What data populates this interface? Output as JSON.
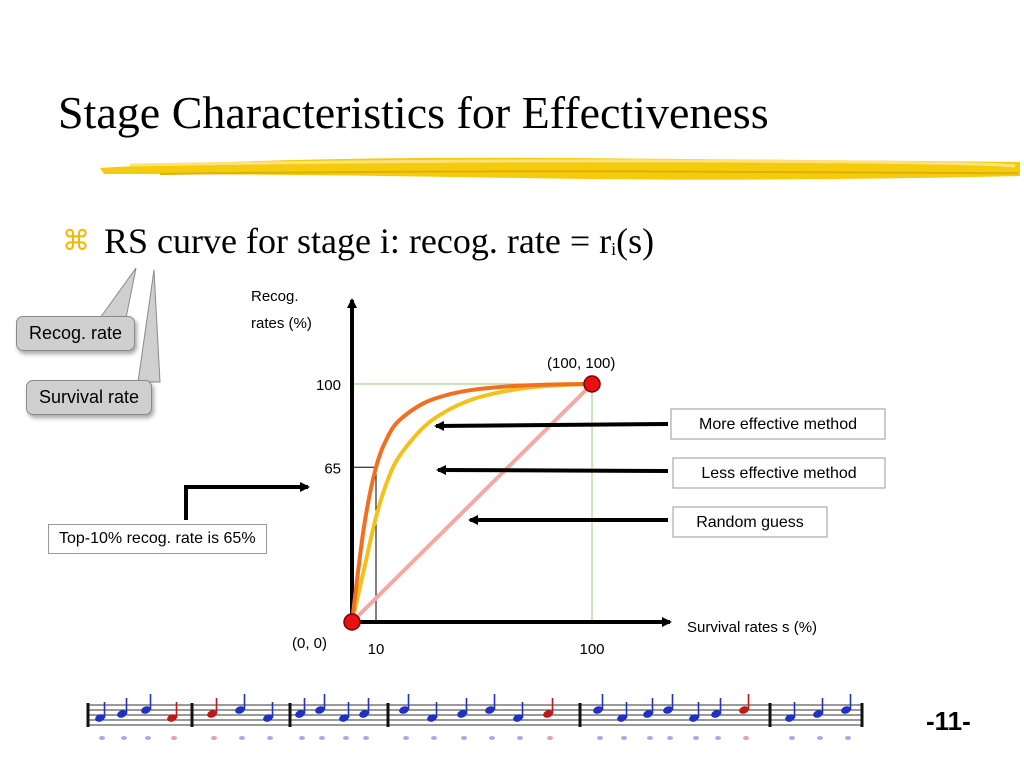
{
  "slide": {
    "title": "Stage Characteristics for Effectiveness",
    "bullet_glyph": "⌘",
    "bullet_text": "RS curve for stage i: recog. rate = r",
    "bullet_sub": "i",
    "bullet_tail": "(s)",
    "callout_recog": "Recog. rate",
    "callout_survival": "Survival rate",
    "page_number": "-11-",
    "note_box": "Top-10% recog. rate is 65%",
    "underline_color": "#f2c400",
    "accent_color": "#f2b705"
  },
  "chart_data": {
    "type": "line",
    "ylabel": [
      "Recog.",
      "rates (%)"
    ],
    "xlabel": "Survival rates s (%)",
    "xlim": [
      0,
      100
    ],
    "ylim": [
      0,
      100
    ],
    "x_ticks": [
      "10",
      "100"
    ],
    "y_ticks": [
      "65",
      "100"
    ],
    "origin_label": "(0, 0)",
    "end_label": "(100, 100)",
    "endpoints": [
      [
        0,
        0
      ],
      [
        100,
        100
      ]
    ],
    "reference_point": {
      "x": 10,
      "y": 65
    },
    "series": [
      {
        "label": "More effective method",
        "color": "#f07020",
        "x": [
          0,
          5,
          10,
          15,
          20,
          30,
          40,
          50,
          60,
          70,
          80,
          90,
          100
        ],
        "y": [
          0,
          40,
          65,
          78,
          85,
          92,
          95.5,
          97.5,
          98.6,
          99.3,
          99.7,
          99.9,
          100
        ]
      },
      {
        "label": "Less effective method",
        "color": "#f2c21a",
        "x": [
          0,
          5,
          10,
          15,
          20,
          30,
          40,
          50,
          60,
          70,
          80,
          90,
          100
        ],
        "y": [
          0,
          22,
          44,
          60,
          70,
          82,
          89,
          93.5,
          96.2,
          98,
          99.1,
          99.7,
          100
        ]
      },
      {
        "label": "Random guess",
        "color": "#f2aaa2",
        "x": [
          0,
          100
        ],
        "y": [
          0,
          100
        ]
      }
    ],
    "endpoint_color": "#e81010",
    "guide_color": "#a8d890"
  }
}
